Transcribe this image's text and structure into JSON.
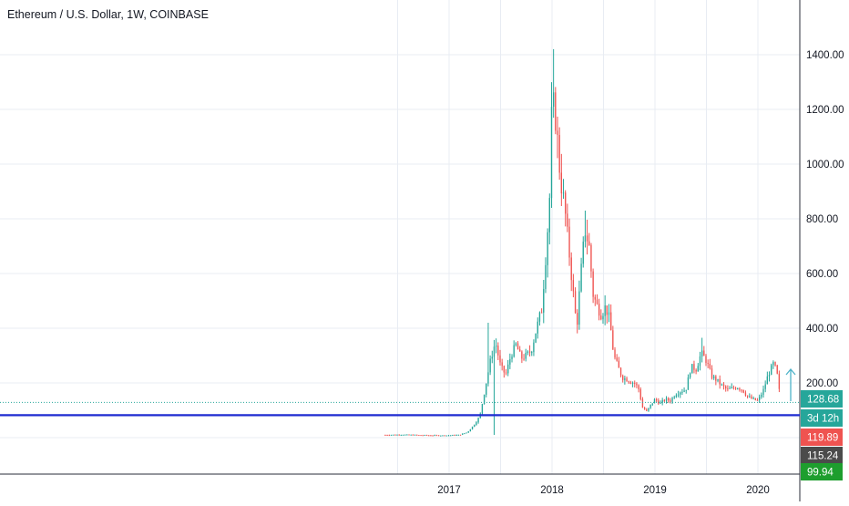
{
  "header": {
    "title": "Ethereum / U.S. Dollar, 1W, COINBASE"
  },
  "colors": {
    "up": "#26a69a",
    "down": "#ef5350",
    "support_line": "#1f2bd1",
    "grid": "#e8ecf3",
    "axis_text": "#131722",
    "price_dotted": "#26a69a"
  },
  "price_labels": [
    {
      "text": "128.68",
      "color": "#26a69a"
    },
    {
      "text": "3d 12h",
      "color": "#26a69a"
    },
    {
      "text": "119.89",
      "color": "#ef5350"
    },
    {
      "text": "115.24",
      "color": "#4b4b4b"
    },
    {
      "text": "99.94",
      "color": "#1e9e2e"
    }
  ],
  "chart_data": {
    "type": "candlestick",
    "title": "Ethereum / U.S. Dollar, 1W, COINBASE",
    "interval": "1W",
    "y_ticks": [
      200,
      400,
      600,
      800,
      1000,
      1200,
      1400
    ],
    "y_tick_labels": [
      "200.00",
      "400.00",
      "600.00",
      "800.00",
      "1000.00",
      "1200.00",
      "1400.00"
    ],
    "x_tick_labels": [
      "2017",
      "2018",
      "2019",
      "2020"
    ],
    "x_tick_years": [
      2017,
      2018,
      2019,
      2020
    ],
    "ylim": [
      -150,
      1560
    ],
    "xlim": [
      2016.0,
      2020.4
    ],
    "grid": true,
    "support_level": 82,
    "last_price": 128.68,
    "series_points": [
      [
        2016.38,
        10
      ],
      [
        2016.55,
        11
      ],
      [
        2016.75,
        9
      ],
      [
        2016.95,
        8
      ],
      [
        2017.1,
        10
      ],
      [
        2017.18,
        20
      ],
      [
        2017.25,
        50
      ],
      [
        2017.3,
        80
      ],
      [
        2017.35,
        180
      ],
      [
        2017.4,
        280
      ],
      [
        2017.45,
        350
      ],
      [
        2017.5,
        260
      ],
      [
        2017.55,
        230
      ],
      [
        2017.6,
        300
      ],
      [
        2017.65,
        340
      ],
      [
        2017.7,
        290
      ],
      [
        2017.75,
        300
      ],
      [
        2017.8,
        320
      ],
      [
        2017.85,
        400
      ],
      [
        2017.9,
        470
      ],
      [
        2017.95,
        720
      ],
      [
        2017.98,
        900
      ],
      [
        2018.0,
        1250
      ],
      [
        2018.04,
        1150
      ],
      [
        2018.08,
        950
      ],
      [
        2018.12,
        850
      ],
      [
        2018.16,
        700
      ],
      [
        2018.2,
        550
      ],
      [
        2018.24,
        400
      ],
      [
        2018.28,
        600
      ],
      [
        2018.32,
        760
      ],
      [
        2018.36,
        700
      ],
      [
        2018.4,
        520
      ],
      [
        2018.44,
        480
      ],
      [
        2018.48,
        450
      ],
      [
        2018.52,
        480
      ],
      [
        2018.56,
        430
      ],
      [
        2018.6,
        300
      ],
      [
        2018.64,
        260
      ],
      [
        2018.68,
        220
      ],
      [
        2018.72,
        215
      ],
      [
        2018.76,
        205
      ],
      [
        2018.8,
        200
      ],
      [
        2018.84,
        180
      ],
      [
        2018.88,
        110
      ],
      [
        2018.92,
        95
      ],
      [
        2018.96,
        120
      ],
      [
        2019.0,
        140
      ],
      [
        2019.05,
        125
      ],
      [
        2019.1,
        140
      ],
      [
        2019.15,
        135
      ],
      [
        2019.2,
        160
      ],
      [
        2019.25,
        170
      ],
      [
        2019.3,
        175
      ],
      [
        2019.35,
        260
      ],
      [
        2019.4,
        250
      ],
      [
        2019.45,
        310
      ],
      [
        2019.5,
        280
      ],
      [
        2019.55,
        225
      ],
      [
        2019.6,
        210
      ],
      [
        2019.65,
        190
      ],
      [
        2019.7,
        175
      ],
      [
        2019.75,
        180
      ],
      [
        2019.8,
        185
      ],
      [
        2019.85,
        175
      ],
      [
        2019.9,
        150
      ],
      [
        2019.95,
        140
      ],
      [
        2020.0,
        135
      ],
      [
        2020.05,
        170
      ],
      [
        2020.1,
        230
      ],
      [
        2020.15,
        270
      ],
      [
        2020.18,
        245
      ],
      [
        2020.2,
        200
      ],
      [
        2020.22,
        120
      ]
    ]
  }
}
